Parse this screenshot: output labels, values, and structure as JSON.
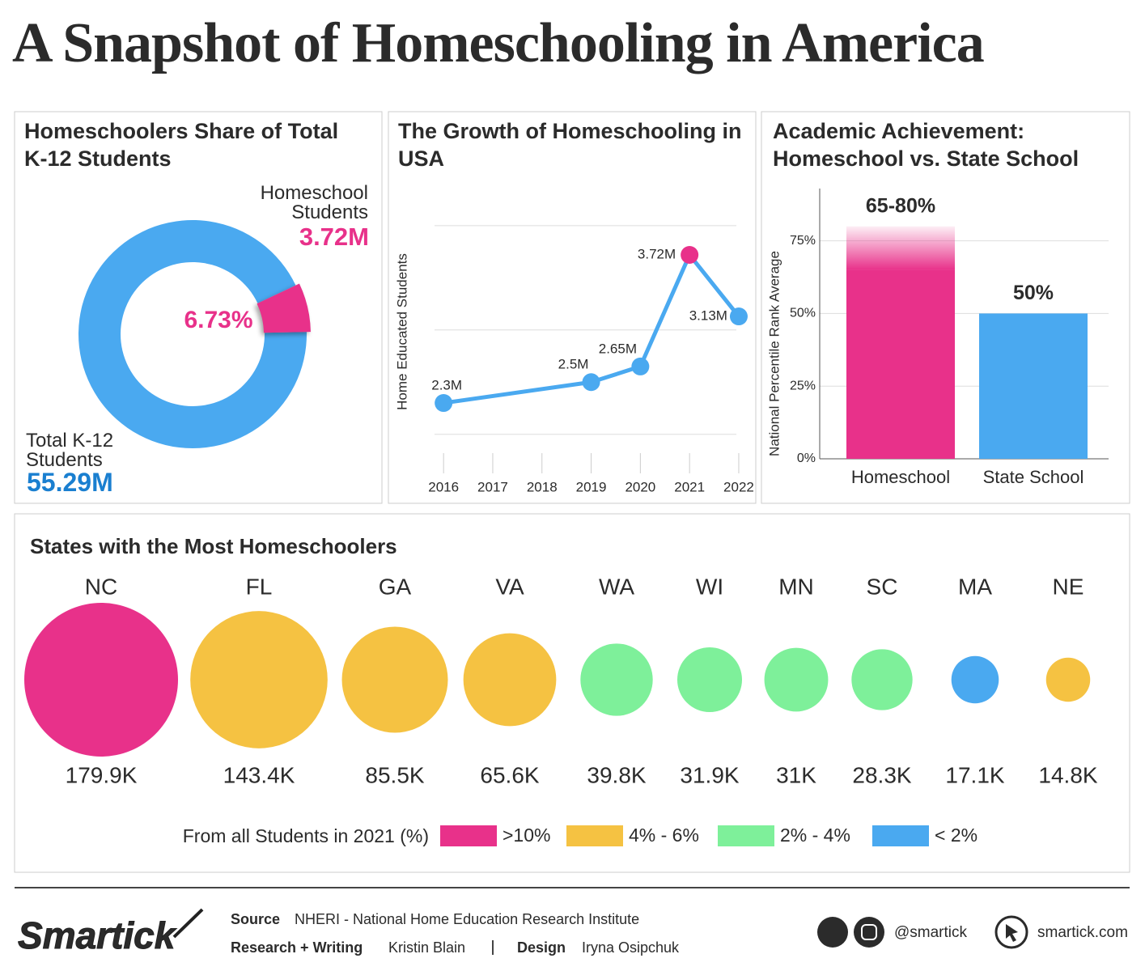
{
  "title": "A Snapshot of Homeschooling in America",
  "chart_data": [
    {
      "type": "donut",
      "title": "Homeschoolers Share of Total K-12 Students",
      "categories": [
        "Homeschool Students",
        "Total K-12 Students"
      ],
      "values": [
        3.72,
        55.29
      ],
      "value_labels": [
        "3.72M",
        "55.29M"
      ],
      "colors": [
        "#e8318a",
        "#4aa9f0"
      ],
      "annotation": "6.73%"
    },
    {
      "type": "line",
      "title": "The Growth of Homeschooling in USA",
      "y_label": "Home Educated Students",
      "x": [
        2016,
        2019,
        2020,
        2021,
        2022
      ],
      "values": [
        2.3,
        2.5,
        2.65,
        3.72,
        3.13
      ],
      "value_labels": [
        "2.3M",
        "2.5M",
        "2.65M",
        "3.72M",
        "3.13M"
      ],
      "color": "#4aa9f0",
      "point_colors": [
        "#4aa9f0",
        "#4aa9f0",
        "#4aa9f0",
        "#e8318a",
        "#4aa9f0"
      ],
      "xlim": [
        2015.8,
        2022.05
      ],
      "xticks": [
        2016,
        2017,
        2018,
        2019,
        2020,
        2021,
        2022
      ],
      "ylim": [
        1.8,
        4.2
      ],
      "yticks": [
        2,
        3,
        4
      ],
      "ytick_labels": false,
      "grid": true
    },
    {
      "type": "bar",
      "title": "Academic Achievement: Homeschool vs. State School",
      "y_label": "National Percentile Rank Average",
      "categories": [
        "Homeschool",
        "State School"
      ],
      "values_low": [
        65,
        50
      ],
      "values": [
        80,
        50
      ],
      "value_labels": [
        "65-80%",
        "50%"
      ],
      "colors": [
        "#e8318a",
        "#4aa9f0"
      ],
      "ylim": [
        0,
        93
      ],
      "yticks": [
        {
          "value": 0,
          "label": "0%"
        },
        {
          "value": 25,
          "label": "25%"
        },
        {
          "value": 50,
          "label": "50%"
        },
        {
          "value": 75,
          "label": "75%"
        }
      ],
      "grid": true
    },
    {
      "type": "bubble",
      "title": "States with the Most Homeschoolers",
      "categories": [
        "NC",
        "FL",
        "GA",
        "VA",
        "WA",
        "WI",
        "MN",
        "SC",
        "MA",
        "NE"
      ],
      "values": [
        179.9,
        143.4,
        85.5,
        65.6,
        39.8,
        31.9,
        31,
        28.3,
        17.1,
        14.8
      ],
      "value_labels": [
        "179.9K",
        "143.4K",
        "85.5K",
        "65.6K",
        "39.8K",
        "31.9K",
        "31K",
        "28.3K",
        "17.1K",
        "14.8K"
      ],
      "colors": [
        "#e8318a",
        "#f5c242",
        "#f5c242",
        "#f5c242",
        "#7ef09a",
        "#7ef09a",
        "#7ef09a",
        "#7ef09a",
        "#4aa9f0",
        "#f5c242"
      ],
      "legend_title": "From all Students in 2021 (%)",
      "legend": [
        {
          "name": ">10%",
          "color": "#e8318a"
        },
        {
          "name": "4% - 6%",
          "color": "#f5c242"
        },
        {
          "name": "2% - 4%",
          "color": "#7ef09a"
        },
        {
          "name": "< 2%",
          "color": "#4aa9f0"
        }
      ]
    }
  ],
  "footer": {
    "brand": "Smartick",
    "source_label": "Source",
    "source": "NHERI - National Home Education Research Institute",
    "research_label": "Research + Writing",
    "research": "Kristin Blain",
    "design_label": "Design",
    "design": "Iryna Osipchuk",
    "handle": "@smartick",
    "website": "smartick.com"
  }
}
